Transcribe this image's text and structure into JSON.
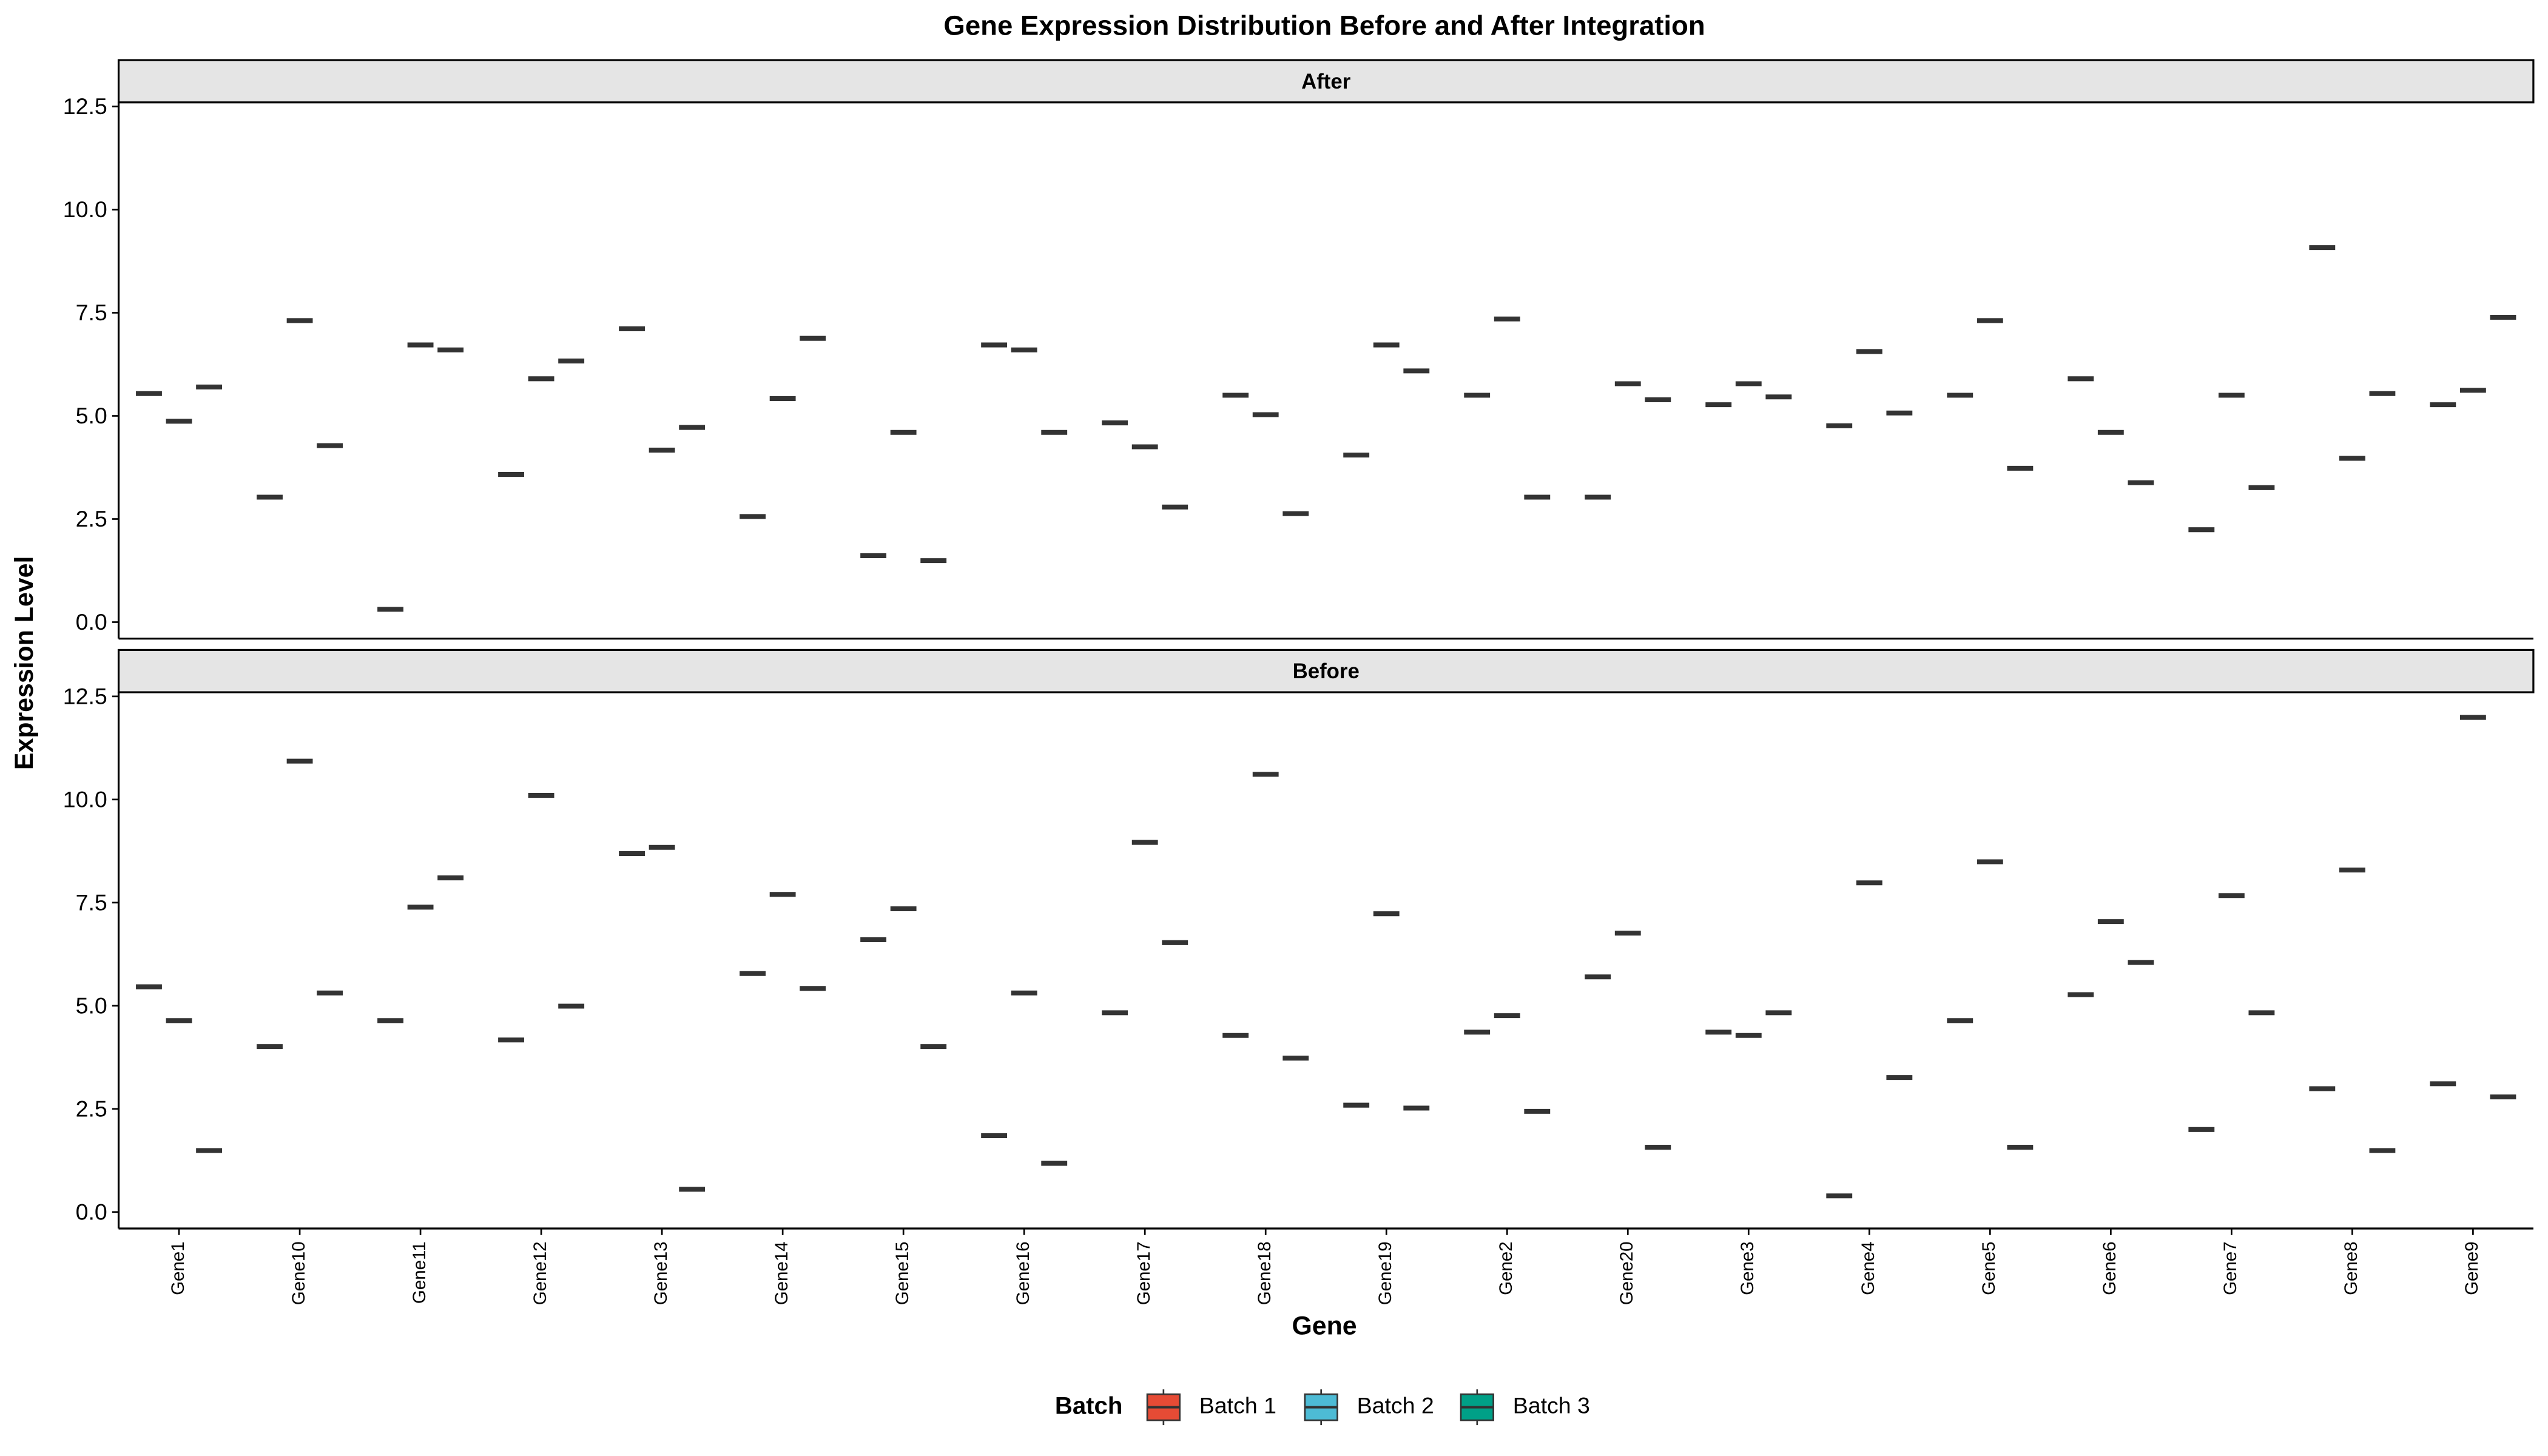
{
  "chart_data": {
    "type": "boxplot",
    "title": "Gene Expression Distribution Before and After Integration",
    "x_label": "Gene",
    "y_label": "Expression Level",
    "legend_title": "Batch",
    "categories": [
      "Gene1",
      "Gene10",
      "Gene11",
      "Gene12",
      "Gene13",
      "Gene14",
      "Gene15",
      "Gene16",
      "Gene17",
      "Gene18",
      "Gene19",
      "Gene2",
      "Gene20",
      "Gene3",
      "Gene4",
      "Gene5",
      "Gene6",
      "Gene7",
      "Gene8",
      "Gene9"
    ],
    "ylim": [
      -0.4,
      12.6
    ],
    "yticks": [
      {
        "value": 0,
        "label": "0.0"
      },
      2.5,
      {
        "value": 5,
        "label": "5.0"
      },
      7.5,
      {
        "value": 10,
        "label": "10.0"
      },
      12.5
    ],
    "series": [
      {
        "name": "Batch 1",
        "color": "#e64b35"
      },
      {
        "name": "Batch 2",
        "color": "#4dbbd5"
      },
      {
        "name": "Batch 3",
        "color": "#00a087"
      }
    ],
    "panels": [
      {
        "label": "After",
        "values": [
          [
            5.54,
            3.03,
            0.31,
            3.58,
            7.11,
            2.56,
            1.61,
            6.72,
            4.83,
            5.5,
            4.05,
            5.5,
            3.03,
            5.27,
            4.76,
            5.5,
            5.9,
            2.24,
            9.08,
            5.27
          ],
          [
            4.87,
            7.31,
            6.72,
            5.9,
            4.17,
            5.42,
            4.6,
            6.6,
            4.25,
            5.03,
            6.72,
            7.35,
            5.78,
            5.78,
            6.56,
            7.31,
            4.6,
            5.5,
            3.97,
            5.62
          ],
          [
            5.7,
            4.28,
            6.6,
            6.33,
            4.72,
            6.88,
            1.49,
            4.6,
            2.79,
            2.63,
            6.09,
            3.03,
            5.39,
            5.46,
            5.07,
            3.73,
            3.38,
            3.26,
            5.54,
            7.39
          ]
        ]
      },
      {
        "label": "Before",
        "values": [
          [
            5.46,
            4.01,
            4.64,
            4.17,
            8.69,
            5.78,
            6.6,
            1.85,
            4.83,
            4.28,
            2.59,
            4.36,
            5.7,
            4.36,
            0.39,
            4.64,
            5.27,
            2.0,
            2.99,
            3.11
          ],
          [
            4.64,
            10.93,
            7.39,
            10.1,
            8.84,
            7.7,
            7.35,
            5.31,
            8.96,
            10.61,
            7.23,
            4.76,
            6.76,
            4.28,
            7.98,
            8.49,
            7.04,
            7.67,
            8.29,
            11.99
          ],
          [
            1.49,
            5.31,
            8.1,
            4.99,
            0.55,
            5.42,
            4.01,
            1.18,
            6.53,
            3.73,
            2.52,
            2.44,
            1.57,
            4.83,
            3.26,
            1.57,
            6.05,
            4.83,
            1.49,
            2.79
          ]
        ]
      }
    ]
  }
}
